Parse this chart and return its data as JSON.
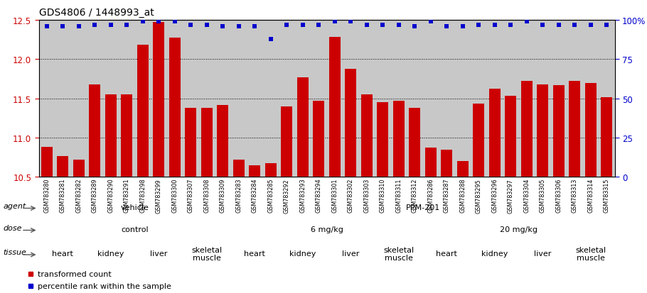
{
  "title": "GDS4806 / 1448993_at",
  "samples": [
    "GSM783280",
    "GSM783281",
    "GSM783282",
    "GSM783289",
    "GSM783290",
    "GSM783291",
    "GSM783298",
    "GSM783299",
    "GSM783300",
    "GSM783307",
    "GSM783308",
    "GSM783309",
    "GSM783283",
    "GSM783284",
    "GSM783285",
    "GSM783292",
    "GSM783293",
    "GSM783294",
    "GSM783301",
    "GSM783302",
    "GSM783303",
    "GSM783310",
    "GSM783311",
    "GSM783312",
    "GSM783286",
    "GSM783287",
    "GSM783288",
    "GSM783295",
    "GSM783296",
    "GSM783297",
    "GSM783304",
    "GSM783305",
    "GSM783306",
    "GSM783313",
    "GSM783314",
    "GSM783315"
  ],
  "bar_values": [
    10.88,
    10.77,
    10.72,
    11.68,
    11.55,
    11.55,
    12.18,
    12.47,
    12.27,
    11.38,
    11.38,
    11.42,
    10.72,
    10.65,
    10.68,
    11.4,
    11.77,
    11.47,
    12.28,
    11.88,
    11.55,
    11.45,
    11.47,
    11.38,
    10.87,
    10.85,
    10.7,
    11.43,
    11.62,
    11.53,
    11.72,
    11.68,
    11.67,
    11.72,
    11.7,
    11.52
  ],
  "percentile_values": [
    96,
    96,
    96,
    97,
    97,
    97,
    99,
    99,
    99,
    97,
    97,
    96,
    96,
    96,
    88,
    97,
    97,
    97,
    99,
    99,
    97,
    97,
    97,
    96,
    99,
    96,
    96,
    97,
    97,
    97,
    99,
    97,
    97,
    97,
    97,
    97
  ],
  "ylim_left": [
    10.5,
    12.5
  ],
  "ylim_right": [
    0,
    100
  ],
  "yticks_left": [
    10.5,
    11.0,
    11.5,
    12.0,
    12.5
  ],
  "yticks_right": [
    0,
    25,
    50,
    75,
    100
  ],
  "bar_color": "#CC0000",
  "dot_color": "#0000CC",
  "xticklabel_bg": "#C8C8C8",
  "agent_groups": [
    {
      "label": "vehicle",
      "start": 0,
      "end": 12,
      "color": "#88DD88"
    },
    {
      "label": "PPM-201",
      "start": 12,
      "end": 36,
      "color": "#66CC66"
    }
  ],
  "dose_groups": [
    {
      "label": "control",
      "start": 0,
      "end": 12,
      "color": "#BBBBEE"
    },
    {
      "label": "6 mg/kg",
      "start": 12,
      "end": 24,
      "color": "#9999CC"
    },
    {
      "label": "20 mg/kg",
      "start": 24,
      "end": 36,
      "color": "#7777BB"
    }
  ],
  "tissue_groups": [
    {
      "label": "heart",
      "start": 0,
      "end": 3,
      "color": "#EE9999"
    },
    {
      "label": "kidney",
      "start": 3,
      "end": 6,
      "color": "#DD8888"
    },
    {
      "label": "liver",
      "start": 6,
      "end": 9,
      "color": "#EE9999"
    },
    {
      "label": "skeletal\nmuscle",
      "start": 9,
      "end": 12,
      "color": "#CC7777"
    },
    {
      "label": "heart",
      "start": 12,
      "end": 15,
      "color": "#EE9999"
    },
    {
      "label": "kidney",
      "start": 15,
      "end": 18,
      "color": "#DD8888"
    },
    {
      "label": "liver",
      "start": 18,
      "end": 21,
      "color": "#EE9999"
    },
    {
      "label": "skeletal\nmuscle",
      "start": 21,
      "end": 24,
      "color": "#CC7777"
    },
    {
      "label": "heart",
      "start": 24,
      "end": 27,
      "color": "#EE9999"
    },
    {
      "label": "kidney",
      "start": 27,
      "end": 30,
      "color": "#DD8888"
    },
    {
      "label": "liver",
      "start": 30,
      "end": 33,
      "color": "#EE9999"
    },
    {
      "label": "skeletal\nmuscle",
      "start": 33,
      "end": 36,
      "color": "#CC7777"
    }
  ],
  "legend_items": [
    {
      "label": "transformed count",
      "color": "#CC0000"
    },
    {
      "label": "percentile rank within the sample",
      "color": "#0000CC"
    }
  ],
  "row_labels": [
    "agent",
    "dose",
    "tissue"
  ]
}
